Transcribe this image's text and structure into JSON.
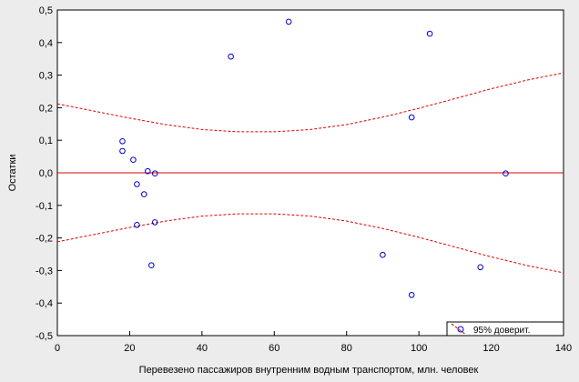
{
  "chart_data": {
    "type": "scatter",
    "title": "",
    "xlabel": "Перевезено пассажиров внутренним водным транспортом, млн. человек",
    "ylabel": "Остатки",
    "xlim": [
      0,
      140
    ],
    "ylim": [
      -0.5,
      0.5
    ],
    "x_ticks": [
      "0",
      "20",
      "40",
      "60",
      "80",
      "100",
      "120",
      "140"
    ],
    "y_ticks": [
      "-0,5",
      "-0,4",
      "-0,3",
      "-0,2",
      "-0,1",
      "0,0",
      "0,1",
      "0,2",
      "0,3",
      "0,4",
      "0,5"
    ],
    "grid": false,
    "legend_position": "bottom-right",
    "legend_label": "95% доверит.",
    "colors": {
      "points": "#0000cc",
      "zero_line": "#dd0000",
      "confidence_band": "#dd0000",
      "plot_background": "#ffffff",
      "page_background": "#ececec"
    },
    "points": [
      {
        "x": 18,
        "y": 0.097
      },
      {
        "x": 18,
        "y": 0.067
      },
      {
        "x": 21,
        "y": 0.04
      },
      {
        "x": 22,
        "y": -0.035
      },
      {
        "x": 24,
        "y": -0.066
      },
      {
        "x": 25,
        "y": 0.005
      },
      {
        "x": 27,
        "y": -0.002
      },
      {
        "x": 22,
        "y": -0.16
      },
      {
        "x": 27,
        "y": -0.152
      },
      {
        "x": 26,
        "y": -0.284
      },
      {
        "x": 48,
        "y": 0.357
      },
      {
        "x": 64,
        "y": 0.464
      },
      {
        "x": 103,
        "y": 0.427
      },
      {
        "x": 98,
        "y": 0.17
      },
      {
        "x": 124,
        "y": -0.002
      },
      {
        "x": 90,
        "y": -0.252
      },
      {
        "x": 117,
        "y": -0.29
      },
      {
        "x": 98,
        "y": -0.375
      }
    ],
    "confidence_upper": [
      {
        "x": 0,
        "y": 0.212
      },
      {
        "x": 10,
        "y": 0.19
      },
      {
        "x": 20,
        "y": 0.168
      },
      {
        "x": 30,
        "y": 0.148
      },
      {
        "x": 40,
        "y": 0.133
      },
      {
        "x": 50,
        "y": 0.126
      },
      {
        "x": 60,
        "y": 0.126
      },
      {
        "x": 70,
        "y": 0.133
      },
      {
        "x": 80,
        "y": 0.148
      },
      {
        "x": 90,
        "y": 0.171
      },
      {
        "x": 100,
        "y": 0.198
      },
      {
        "x": 110,
        "y": 0.228
      },
      {
        "x": 120,
        "y": 0.258
      },
      {
        "x": 130,
        "y": 0.285
      },
      {
        "x": 140,
        "y": 0.307
      }
    ],
    "confidence_lower": [
      {
        "x": 0,
        "y": -0.212
      },
      {
        "x": 10,
        "y": -0.19
      },
      {
        "x": 20,
        "y": -0.168
      },
      {
        "x": 30,
        "y": -0.148
      },
      {
        "x": 40,
        "y": -0.133
      },
      {
        "x": 50,
        "y": -0.126
      },
      {
        "x": 60,
        "y": -0.126
      },
      {
        "x": 70,
        "y": -0.133
      },
      {
        "x": 80,
        "y": -0.148
      },
      {
        "x": 90,
        "y": -0.171
      },
      {
        "x": 100,
        "y": -0.198
      },
      {
        "x": 110,
        "y": -0.228
      },
      {
        "x": 120,
        "y": -0.258
      },
      {
        "x": 130,
        "y": -0.285
      },
      {
        "x": 140,
        "y": -0.307
      }
    ],
    "zero_line_y": 0
  }
}
